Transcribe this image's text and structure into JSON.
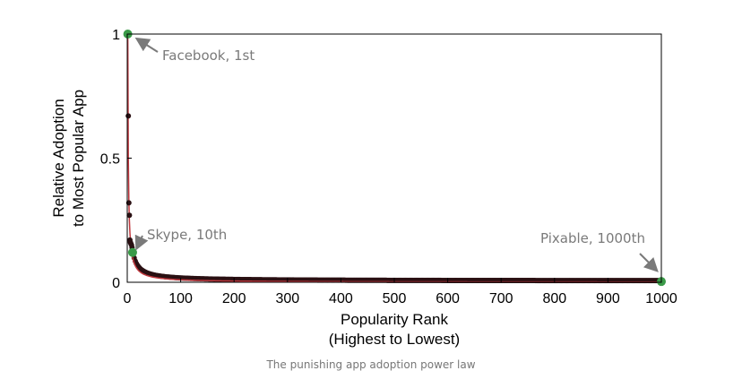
{
  "chart_data": {
    "type": "scatter",
    "title": "",
    "xlabel": [
      "Popularity Rank",
      "(Highest to Lowest)"
    ],
    "ylabel": [
      "Relative Adoption",
      "to Most Popular App"
    ],
    "xlim": [
      0,
      1000
    ],
    "ylim": [
      0,
      1
    ],
    "xticks": [
      "0",
      "100",
      "200",
      "300",
      "400",
      "500",
      "600",
      "700",
      "800",
      "900",
      "1000"
    ],
    "yticks": [
      "0",
      "0.5",
      "1"
    ],
    "grid": false,
    "curve": "power law",
    "points": [
      {
        "x": 1,
        "y": 1.0
      },
      {
        "x": 2,
        "y": 0.67
      },
      {
        "x": 3,
        "y": 0.32
      },
      {
        "x": 4,
        "y": 0.27
      },
      {
        "x": 5,
        "y": 0.17
      },
      {
        "x": 6,
        "y": 0.16
      },
      {
        "x": 7,
        "y": 0.155
      },
      {
        "x": 8,
        "y": 0.15
      },
      {
        "x": 9,
        "y": 0.14
      },
      {
        "x": 10,
        "y": 0.12
      }
    ],
    "highlights": [
      {
        "x": 1,
        "y": 1.0,
        "label": "Facebook, 1st"
      },
      {
        "x": 10,
        "y": 0.12,
        "label": "Skype, 10th"
      },
      {
        "x": 1000,
        "y": 0.003,
        "label": "Pixable, 1000th"
      }
    ],
    "colors": {
      "points": "#2a1013",
      "line": "#c0393f",
      "highlight": "#3a9a48",
      "annotation": "#7a7a7a"
    }
  },
  "caption": "The punishing app adoption power law"
}
